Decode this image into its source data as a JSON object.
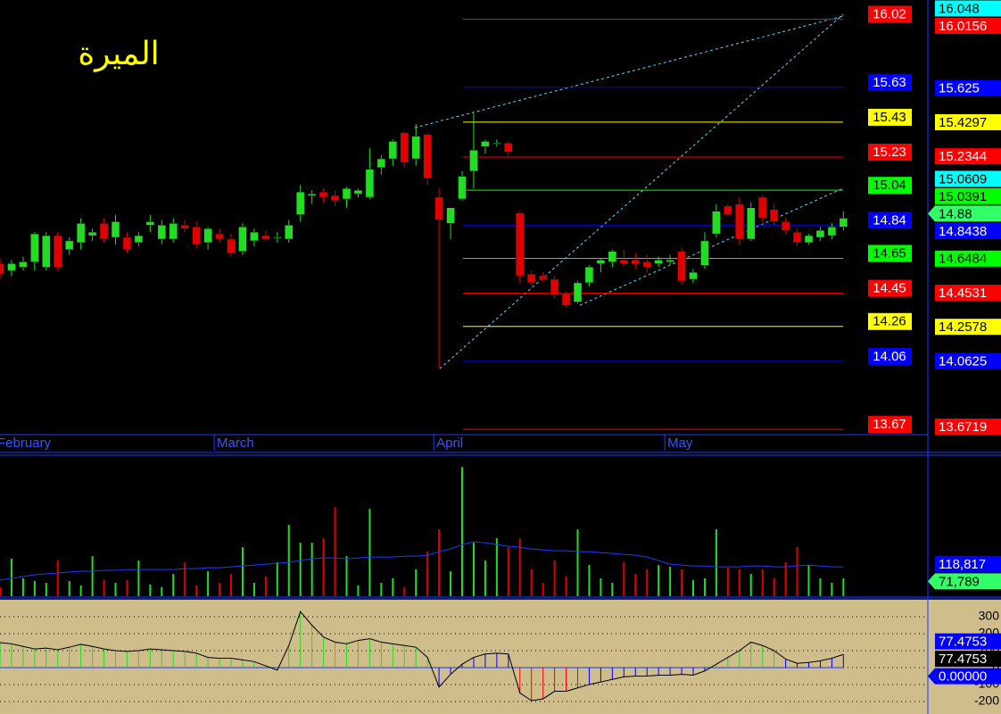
{
  "chart_data": [
    {
      "type": "candlestick",
      "title": "الميرة",
      "categories": [
        "February",
        null,
        null,
        null,
        null,
        null,
        null,
        null,
        null,
        null,
        null,
        null,
        null,
        null,
        null,
        null,
        null,
        null,
        null,
        "March",
        null,
        null,
        null,
        null,
        null,
        null,
        null,
        null,
        null,
        null,
        null,
        null,
        null,
        null,
        null,
        null,
        null,
        null,
        "April",
        null,
        null,
        null,
        null,
        null,
        null,
        null,
        null,
        null,
        null,
        null,
        null,
        null,
        null,
        null,
        null,
        null,
        null,
        null,
        "May",
        null,
        null,
        null,
        null,
        null,
        null,
        null,
        null,
        null,
        null,
        null,
        null,
        null,
        null,
        null
      ],
      "open": [
        14.62,
        14.58,
        14.6,
        14.63,
        14.6,
        14.78,
        14.7,
        14.74,
        14.78,
        14.85,
        14.77,
        14.77,
        14.74,
        14.84,
        14.76,
        14.76,
        14.84,
        14.83,
        14.74,
        14.79,
        14.76,
        14.69,
        14.75,
        14.78,
        14.77,
        14.76,
        14.9,
        15.01,
        15.03,
        15.01,
        14.99,
        15.02,
        15.0,
        15.17,
        15.22,
        15.37,
        15.22,
        15.36,
        15.0,
        14.85,
        14.99,
        15.15,
        15.29,
        15.31,
        15.31,
        14.91,
        14.56,
        14.55,
        14.53,
        14.45,
        14.4,
        14.51,
        14.62,
        14.63,
        14.64,
        14.64,
        14.63,
        14.62,
        14.63,
        14.69,
        14.53,
        14.61,
        14.79,
        14.95,
        14.96,
        14.76,
        15.0,
        14.93,
        14.86,
        14.8,
        14.74,
        14.77,
        14.78,
        14.83
      ],
      "high": [
        14.65,
        14.64,
        14.66,
        14.8,
        14.8,
        14.8,
        14.77,
        14.88,
        14.82,
        14.88,
        14.9,
        14.8,
        14.8,
        14.9,
        14.87,
        14.88,
        14.87,
        14.86,
        14.83,
        14.82,
        14.79,
        14.85,
        14.82,
        14.81,
        14.8,
        14.87,
        15.07,
        15.04,
        15.05,
        15.04,
        15.06,
        15.05,
        15.28,
        15.24,
        15.33,
        15.38,
        15.42,
        15.37,
        15.05,
        14.94,
        15.15,
        15.48,
        15.33,
        15.33,
        15.32,
        14.92,
        14.58,
        14.57,
        14.55,
        14.46,
        14.52,
        14.61,
        14.65,
        14.7,
        14.7,
        14.68,
        14.67,
        14.66,
        14.67,
        14.71,
        14.59,
        14.8,
        14.96,
        14.96,
        15.0,
        14.97,
        15.01,
        14.96,
        14.88,
        14.82,
        14.79,
        14.83,
        14.85,
        14.92
      ],
      "low": [
        14.53,
        14.55,
        14.58,
        14.58,
        14.58,
        14.58,
        14.67,
        14.7,
        14.75,
        14.74,
        14.73,
        14.68,
        14.72,
        14.8,
        14.73,
        14.74,
        14.8,
        14.71,
        14.7,
        14.74,
        14.66,
        14.67,
        14.72,
        14.75,
        14.74,
        14.74,
        14.86,
        14.96,
        14.97,
        14.95,
        14.94,
        15.0,
        14.99,
        15.13,
        15.18,
        15.17,
        15.18,
        15.07,
        14.02,
        14.76,
        14.98,
        15.05,
        15.25,
        15.29,
        15.24,
        14.51,
        14.49,
        14.52,
        14.42,
        14.37,
        14.39,
        14.49,
        14.57,
        14.6,
        14.6,
        14.59,
        14.57,
        14.6,
        14.61,
        14.5,
        14.51,
        14.59,
        14.77,
        14.89,
        14.73,
        14.75,
        14.86,
        14.84,
        14.79,
        14.72,
        14.73,
        14.75,
        14.76,
        14.81
      ],
      "close": [
        14.56,
        14.62,
        14.63,
        14.79,
        14.78,
        14.6,
        14.75,
        14.85,
        14.8,
        14.76,
        14.86,
        14.7,
        14.78,
        14.86,
        14.84,
        14.85,
        14.82,
        14.73,
        14.82,
        14.76,
        14.68,
        14.83,
        14.8,
        14.76,
        14.77,
        14.84,
        15.03,
        15.02,
        15.0,
        14.98,
        15.05,
        15.04,
        15.16,
        15.22,
        15.32,
        15.2,
        15.35,
        15.11,
        14.87,
        14.94,
        15.12,
        15.27,
        15.32,
        15.31,
        15.26,
        14.55,
        14.51,
        14.53,
        14.44,
        14.38,
        14.51,
        14.6,
        14.64,
        14.69,
        14.62,
        14.62,
        14.6,
        14.64,
        14.64,
        14.52,
        14.57,
        14.75,
        14.92,
        14.9,
        14.76,
        14.94,
        14.88,
        14.86,
        14.81,
        14.74,
        14.78,
        14.81,
        14.83,
        14.88
      ],
      "up_color": "#22dd22",
      "down_color": "#e00000",
      "ylim": [
        13.64,
        16.13
      ],
      "levels": [
        {
          "value": 16.02,
          "color": "#ff0000"
        },
        {
          "value": 15.63,
          "color": "#0000ff"
        },
        {
          "value": 15.43,
          "color": "#ffff00"
        },
        {
          "value": 15.23,
          "color": "#ff0000"
        },
        {
          "value": 15.04,
          "color": "#00ff00"
        },
        {
          "value": 14.84,
          "color": "#0000ff"
        },
        {
          "value": 14.65,
          "color": "#00ff00"
        },
        {
          "value": 14.45,
          "color": "#ff0000"
        },
        {
          "value": 14.26,
          "color": "#ffff00"
        },
        {
          "value": 14.06,
          "color": "#0000ff"
        },
        {
          "value": 13.67,
          "color": "#ff0000"
        }
      ],
      "axis_labels": [
        {
          "value": 16.048,
          "color": "#00ffff"
        },
        {
          "value": 16.0156,
          "color": "#ff0000"
        },
        {
          "value": 15.625,
          "color": "#0000ff"
        },
        {
          "value": 15.4297,
          "color": "#ffff00"
        },
        {
          "value": 15.2344,
          "color": "#ff0000"
        },
        {
          "value": 15.0609,
          "color": "#00ffff"
        },
        {
          "value": 15.0391,
          "color": "#00ff00"
        },
        {
          "value": 14.88,
          "color": "#33ff66",
          "arrow": true
        },
        {
          "value": 14.8438,
          "color": "#0000ff"
        },
        {
          "value": 14.6484,
          "color": "#00ff00"
        },
        {
          "value": 14.4531,
          "color": "#ff0000"
        },
        {
          "value": 14.2578,
          "color": "#ffff00"
        },
        {
          "value": 14.0625,
          "color": "#0000ff"
        },
        {
          "value": 13.6719,
          "color": "#ff0000"
        }
      ]
    },
    {
      "type": "bar",
      "values": [
        36000,
        151200,
        72000,
        61200,
        54000,
        144000,
        61200,
        43200,
        162000,
        64800,
        54000,
        64800,
        144000,
        46800,
        36000,
        90000,
        136800,
        43200,
        100800,
        54000,
        90000,
        198000,
        54000,
        79200,
        136800,
        288000,
        216000,
        216000,
        234000,
        360000,
        162000,
        43200,
        352800,
        54000,
        72000,
        36000,
        108000,
        180000,
        270000,
        100800,
        522000,
        216000,
        144000,
        234000,
        198000,
        234000,
        108000,
        54000,
        144000,
        79200,
        270000,
        126000,
        72000,
        54000,
        136800,
        90000,
        108000,
        126000,
        118800,
        108000,
        64800,
        72000,
        270000,
        115200,
        108000,
        90000,
        108000,
        72000,
        136800,
        198000,
        126000,
        72000,
        54000,
        71789
      ],
      "ma": {
        "color": "#1a3cff",
        "values": [
          64800,
          72000,
          79200,
          86400,
          90000,
          93600,
          97200,
          100800,
          100800,
          104400,
          104400,
          108000,
          108000,
          108000,
          108000,
          108000,
          111600,
          111600,
          115200,
          115200,
          118800,
          122400,
          126000,
          129600,
          133200,
          136800,
          144000,
          151200,
          154800,
          154800,
          151200,
          154800,
          158400,
          158400,
          158400,
          162000,
          162000,
          165600,
          180000,
          190800,
          208800,
          219600,
          216000,
          208800,
          201600,
          198000,
          190800,
          187200,
          183600,
          183600,
          180000,
          180000,
          176400,
          172800,
          169200,
          165600,
          158400,
          144000,
          129600,
          126000,
          122400,
          122400,
          118800,
          118800,
          118800,
          122400,
          122400,
          118800,
          118800,
          122400,
          126000,
          122400,
          118800,
          118817
        ]
      },
      "ylim": [
        0,
        570000
      ],
      "axis_labels": [
        {
          "value": 118817,
          "label": "118,817",
          "color": "#0000ff"
        },
        {
          "value": 71789,
          "label": "71,789",
          "color": "#33ff66",
          "arrow": true
        }
      ]
    },
    {
      "type": "oscillator",
      "values": [
        147,
        140,
        125,
        110,
        115,
        105,
        120,
        137,
        125,
        110,
        100,
        95,
        100,
        110,
        105,
        100,
        95,
        85,
        60,
        55,
        55,
        45,
        35,
        10,
        -15,
        130,
        330,
        250,
        180,
        150,
        140,
        160,
        170,
        150,
        140,
        130,
        120,
        60,
        -115,
        -40,
        20,
        60,
        80,
        85,
        80,
        -150,
        -195,
        -185,
        -140,
        -140,
        -120,
        -100,
        -85,
        -70,
        -55,
        -50,
        -50,
        -45,
        -45,
        -40,
        -45,
        -20,
        20,
        60,
        100,
        150,
        130,
        100,
        50,
        25,
        30,
        40,
        55,
        77.4753
      ],
      "bar_colors": [
        "#22dd22",
        "#22dd22",
        "#22dd22",
        "#22dd22",
        "#22dd22",
        "#22dd22",
        "#22dd22",
        "#22dd22",
        "#22dd22",
        "#22dd22",
        "#22dd22",
        "#22dd22",
        "#22dd22",
        "#22dd22",
        "#22dd22",
        "#22dd22",
        "#22dd22",
        "#22dd22",
        "#22dd22",
        "#22dd22",
        "#22dd22",
        "#22dd22",
        "#22dd22",
        "#22dd22",
        "#22dd22",
        "#22dd22",
        "#22dd22",
        "#22dd22",
        "#22dd22",
        "#22dd22",
        "#22dd22",
        "#22dd22",
        "#22dd22",
        "#22dd22",
        "#22dd22",
        "#22dd22",
        "#22dd22",
        "#22dd22",
        "#0000ff",
        "#0000ff",
        "#0000ff",
        "#0000ff",
        "#0000ff",
        "#0000ff",
        "#0000ff",
        "#ff0000",
        "#ff0000",
        "#ff0000",
        "#ff0000",
        "#ff0000",
        "#ff0000",
        "#0000ff",
        "#0000ff",
        "#0000ff",
        "#0000ff",
        "#0000ff",
        "#0000ff",
        "#0000ff",
        "#0000ff",
        "#0000ff",
        "#0000ff",
        "#0000ff",
        "#22dd22",
        "#22dd22",
        "#22dd22",
        "#22dd22",
        "#22dd22",
        "#22dd22",
        "#0000ff",
        "#0000ff",
        "#0000ff",
        "#0000ff",
        "#0000ff",
        "#0000ff"
      ],
      "line_color": "#000000",
      "ylim": [
        -274,
        400
      ],
      "yticks": [
        300,
        200,
        100,
        0,
        -100,
        -200
      ],
      "axis_labels": [
        {
          "value": 77.4753,
          "label": "77.4753",
          "color": "#0000ff"
        },
        {
          "value": 77.4753,
          "label": "77.4753",
          "color": "#000000"
        },
        {
          "value": 0,
          "label": "0.00000",
          "color": "#0000ff",
          "arrow": true
        }
      ]
    }
  ]
}
